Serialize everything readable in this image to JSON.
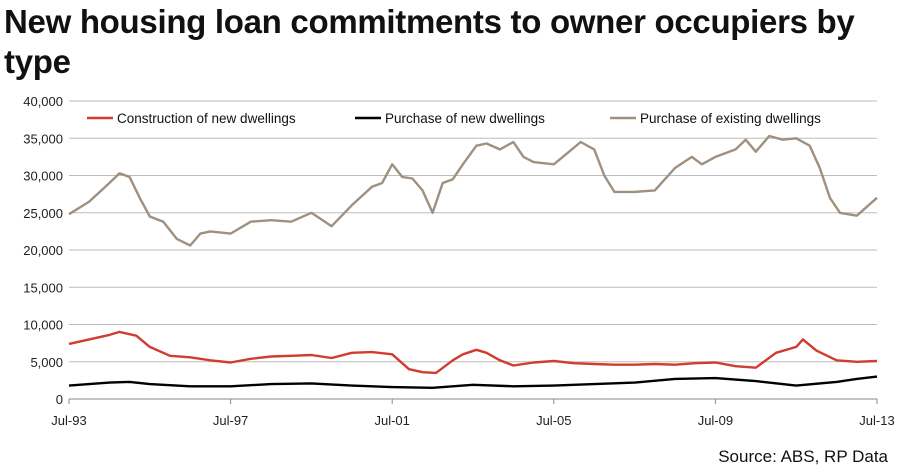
{
  "title": "New housing loan commitments to owner occupiers by type",
  "source": "Source: ABS, RP Data",
  "chart_data": {
    "type": "line",
    "title": "New housing loan commitments to owner occupiers by type",
    "xlabel": "",
    "ylabel": "",
    "ylim": [
      0,
      40000
    ],
    "yticks": [
      "0",
      "5,000",
      "10,000",
      "15,000",
      "20,000",
      "25,000",
      "30,000",
      "35,000",
      "40,000"
    ],
    "xticks": [
      "Jul-93",
      "Jul-97",
      "Jul-01",
      "Jul-05",
      "Jul-09",
      "Jul-13"
    ],
    "grid": "horizontal",
    "legend_position": "top",
    "x_range": [
      "1993-07",
      "2013-07"
    ],
    "series": [
      {
        "name": "Construction of new dwellings",
        "color": "#d03c2f",
        "points": [
          [
            "1993-07",
            7400
          ],
          [
            "1994-01",
            8000
          ],
          [
            "1994-07",
            8600
          ],
          [
            "1994-10",
            9000
          ],
          [
            "1995-03",
            8500
          ],
          [
            "1995-07",
            7000
          ],
          [
            "1996-01",
            5800
          ],
          [
            "1996-07",
            5600
          ],
          [
            "1997-01",
            5200
          ],
          [
            "1997-07",
            4900
          ],
          [
            "1998-01",
            5400
          ],
          [
            "1998-07",
            5700
          ],
          [
            "1999-01",
            5800
          ],
          [
            "1999-07",
            5900
          ],
          [
            "2000-01",
            5500
          ],
          [
            "2000-07",
            6200
          ],
          [
            "2001-01",
            6300
          ],
          [
            "2001-07",
            6000
          ],
          [
            "2001-12",
            4000
          ],
          [
            "2002-04",
            3600
          ],
          [
            "2002-08",
            3500
          ],
          [
            "2003-01",
            5200
          ],
          [
            "2003-04",
            6000
          ],
          [
            "2003-08",
            6600
          ],
          [
            "2003-11",
            6200
          ],
          [
            "2004-03",
            5200
          ],
          [
            "2004-07",
            4500
          ],
          [
            "2005-01",
            4900
          ],
          [
            "2005-07",
            5100
          ],
          [
            "2006-01",
            4800
          ],
          [
            "2006-07",
            4700
          ],
          [
            "2007-01",
            4600
          ],
          [
            "2007-07",
            4600
          ],
          [
            "2008-01",
            4700
          ],
          [
            "2008-07",
            4600
          ],
          [
            "2009-01",
            4800
          ],
          [
            "2009-07",
            4900
          ],
          [
            "2010-01",
            4400
          ],
          [
            "2010-07",
            4200
          ],
          [
            "2011-01",
            6200
          ],
          [
            "2011-07",
            7000
          ],
          [
            "2011-09",
            8000
          ],
          [
            "2012-01",
            6500
          ],
          [
            "2012-07",
            5200
          ],
          [
            "2013-01",
            5000
          ],
          [
            "2013-07",
            5100
          ]
        ]
      },
      {
        "name": "Purchase of new dwellings",
        "color": "#000000",
        "points": [
          [
            "1993-07",
            1800
          ],
          [
            "1994-01",
            2000
          ],
          [
            "1994-07",
            2200
          ],
          [
            "1995-01",
            2300
          ],
          [
            "1995-07",
            2000
          ],
          [
            "1996-07",
            1700
          ],
          [
            "1997-07",
            1700
          ],
          [
            "1998-07",
            2000
          ],
          [
            "1999-07",
            2100
          ],
          [
            "2000-07",
            1800
          ],
          [
            "2001-07",
            1600
          ],
          [
            "2002-07",
            1500
          ],
          [
            "2003-07",
            1900
          ],
          [
            "2004-07",
            1700
          ],
          [
            "2005-07",
            1800
          ],
          [
            "2006-07",
            2000
          ],
          [
            "2007-07",
            2200
          ],
          [
            "2008-07",
            2700
          ],
          [
            "2009-07",
            2800
          ],
          [
            "2010-07",
            2400
          ],
          [
            "2011-07",
            1800
          ],
          [
            "2012-07",
            2300
          ],
          [
            "2013-01",
            2700
          ],
          [
            "2013-07",
            3000
          ]
        ]
      },
      {
        "name": "Purchase of existing dwellings",
        "color": "#a09080",
        "points": [
          [
            "1993-07",
            24800
          ],
          [
            "1994-01",
            26500
          ],
          [
            "1994-07",
            29000
          ],
          [
            "1994-10",
            30300
          ],
          [
            "1995-01",
            29800
          ],
          [
            "1995-04",
            27000
          ],
          [
            "1995-07",
            24500
          ],
          [
            "1995-11",
            23800
          ],
          [
            "1996-03",
            21500
          ],
          [
            "1996-07",
            20600
          ],
          [
            "1996-10",
            22200
          ],
          [
            "1997-01",
            22500
          ],
          [
            "1997-07",
            22200
          ],
          [
            "1998-01",
            23800
          ],
          [
            "1998-07",
            24000
          ],
          [
            "1999-01",
            23800
          ],
          [
            "1999-07",
            25000
          ],
          [
            "2000-01",
            23200
          ],
          [
            "2000-07",
            26000
          ],
          [
            "2001-01",
            28500
          ],
          [
            "2001-04",
            29000
          ],
          [
            "2001-07",
            31500
          ],
          [
            "2001-10",
            29800
          ],
          [
            "2002-01",
            29600
          ],
          [
            "2002-04",
            28000
          ],
          [
            "2002-07",
            25000
          ],
          [
            "2002-10",
            29000
          ],
          [
            "2003-01",
            29500
          ],
          [
            "2003-04",
            31500
          ],
          [
            "2003-08",
            34000
          ],
          [
            "2003-11",
            34300
          ],
          [
            "2004-03",
            33500
          ],
          [
            "2004-07",
            34500
          ],
          [
            "2004-10",
            32500
          ],
          [
            "2005-01",
            31800
          ],
          [
            "2005-07",
            31500
          ],
          [
            "2005-11",
            33000
          ],
          [
            "2006-03",
            34500
          ],
          [
            "2006-07",
            33500
          ],
          [
            "2006-10",
            30000
          ],
          [
            "2007-01",
            27800
          ],
          [
            "2007-07",
            27800
          ],
          [
            "2008-01",
            28000
          ],
          [
            "2008-07",
            31000
          ],
          [
            "2008-12",
            32500
          ],
          [
            "2009-03",
            31500
          ],
          [
            "2009-07",
            32500
          ],
          [
            "2010-01",
            33500
          ],
          [
            "2010-04",
            34800
          ],
          [
            "2010-07",
            33200
          ],
          [
            "2010-11",
            35300
          ],
          [
            "2011-03",
            34800
          ],
          [
            "2011-07",
            35000
          ],
          [
            "2011-11",
            34000
          ],
          [
            "2012-02",
            31000
          ],
          [
            "2012-05",
            27000
          ],
          [
            "2012-08",
            25000
          ],
          [
            "2013-01",
            24600
          ],
          [
            "2013-07",
            27000
          ]
        ]
      }
    ]
  }
}
